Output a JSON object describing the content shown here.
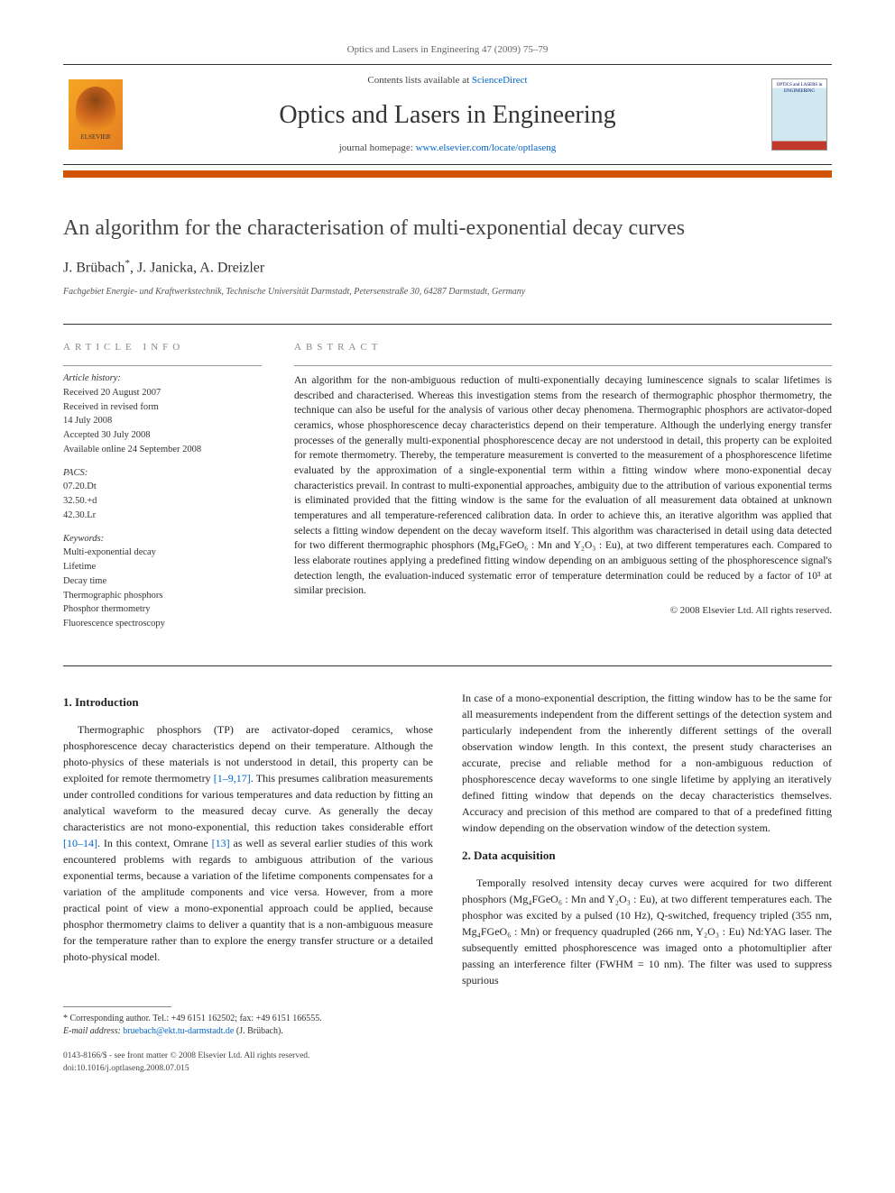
{
  "header": {
    "citation": "Optics and Lasers in Engineering 47 (2009) 75–79",
    "contents_prefix": "Contents lists available at ",
    "contents_link": "ScienceDirect",
    "journal_title": "Optics and Lasers in Engineering",
    "homepage_prefix": "journal homepage: ",
    "homepage_link": "www.elsevier.com/locate/optlaseng",
    "elsevier_label": "ELSEVIER",
    "cover_label": "OPTICS and LASERS in ENGINEERING"
  },
  "article": {
    "title": "An algorithm for the characterisation of multi-exponential decay curves",
    "authors_html": "J. Brübach *, J. Janicka, A. Dreizler",
    "author_1": "J. Brübach",
    "author_1_mark": "*",
    "author_2": "J. Janicka",
    "author_3": "A. Dreizler",
    "affiliation": "Fachgebiet Energie- und Kraftwerkstechnik, Technische Universität Darmstadt, Petersenstraße 30, 64287 Darmstadt, Germany"
  },
  "info": {
    "label": "ARTICLE INFO",
    "history_label": "Article history:",
    "received": "Received 20 August 2007",
    "revised1": "Received in revised form",
    "revised2": "14 July 2008",
    "accepted": "Accepted 30 July 2008",
    "online": "Available online 24 September 2008",
    "pacs_label": "PACS:",
    "pacs1": "07.20.Dt",
    "pacs2": "32.50.+d",
    "pacs3": "42.30.Lr",
    "keywords_label": "Keywords:",
    "kw1": "Multi-exponential decay",
    "kw2": "Lifetime",
    "kw3": "Decay time",
    "kw4": "Thermographic phosphors",
    "kw5": "Phosphor thermometry",
    "kw6": "Fluorescence spectroscopy"
  },
  "abstract": {
    "label": "ABSTRACT",
    "text": "An algorithm for the non-ambiguous reduction of multi-exponentially decaying luminescence signals to scalar lifetimes is described and characterised. Whereas this investigation stems from the research of thermographic phosphor thermometry, the technique can also be useful for the analysis of various other decay phenomena. Thermographic phosphors are activator-doped ceramics, whose phosphorescence decay characteristics depend on their temperature. Although the underlying energy transfer processes of the generally multi-exponential phosphorescence decay are not understood in detail, this property can be exploited for remote thermometry. Thereby, the temperature measurement is converted to the measurement of a phosphorescence lifetime evaluated by the approximation of a single-exponential term within a fitting window where mono-exponential decay characteristics prevail. In contrast to multi-exponential approaches, ambiguity due to the attribution of various exponential terms is eliminated provided that the fitting window is the same for the evaluation of all measurement data obtained at unknown temperatures and all temperature-referenced calibration data. In order to achieve this, an iterative algorithm was applied that selects a fitting window dependent on the decay waveform itself. This algorithm was characterised in detail using data detected for two different thermographic phosphors (Mg₄FGeO₆ : Mn and Y₂O₃ : Eu), at two different temperatures each. Compared to less elaborate routines applying a predefined fitting window depending on an ambiguous setting of the phosphorescence signal's detection length, the evaluation-induced systematic error of temperature determination could be reduced by a factor of 10³ at similar precision.",
    "copyright": "© 2008 Elsevier Ltd. All rights reserved."
  },
  "body": {
    "sec1_title": "1.  Introduction",
    "sec1_p1a": "Thermographic phosphors (TP) are activator-doped ceramics, whose phosphorescence decay characteristics depend on their temperature. Although the photo-physics of these materials is not understood in detail, this property can be exploited for remote thermometry ",
    "sec1_ref1": "[1–9,17]",
    "sec1_p1b": ". This presumes calibration measurements under controlled conditions for various temperatures and data reduction by fitting an analytical waveform to the measured decay curve. As generally the decay characteristics are not mono-exponential, this reduction takes considerable effort ",
    "sec1_ref2": "[10–14]",
    "sec1_p1c": ". In this context, Omrane ",
    "sec1_ref3": "[13]",
    "sec1_p1d": " as well as several earlier studies of this work encountered problems with regards to ambiguous attribution of the various exponential terms, because a variation of the lifetime components compensates for a variation of the amplitude components and vice versa. However, from a more practical point of view a mono-exponential approach could be applied, because phosphor thermometry claims to deliver a quantity that is a non-ambiguous measure for the temperature rather than to explore the energy transfer structure or a detailed photo-physical model.",
    "sec1_p2": "In case of a mono-exponential description, the fitting window has to be the same for all measurements independent from the different settings of the detection system and particularly independent from the inherently different settings of the overall observation window length. In this context, the present study characterises an accurate, precise and reliable method for a non-ambiguous reduction of phosphorescence decay waveforms to one single lifetime by applying an iteratively defined fitting window that depends on the decay characteristics themselves. Accuracy and precision of this method are compared to that of a predefined fitting window depending on the observation window of the detection system.",
    "sec2_title": "2.  Data acquisition",
    "sec2_p1": "Temporally resolved intensity decay curves were acquired for two different phosphors (Mg₄FGeO₆ : Mn and Y₂O₃ : Eu), at two different temperatures each. The phosphor was excited by a pulsed (10 Hz), Q-switched, frequency tripled (355 nm, Mg₄FGeO₆ : Mn) or frequency quadrupled (266 nm, Y₂O₃ : Eu) Nd:YAG laser. The subsequently emitted phosphorescence was imaged onto a photomultiplier after passing an interference filter (FWHM = 10 nm). The filter was used to suppress spurious"
  },
  "footnote": {
    "corr_label": "* Corresponding author. Tel.: +49 6151 162502; fax: +49 6151 166555.",
    "email_label": "E-mail address: ",
    "email": "bruebach@ekt.tu-darmstadt.de",
    "email_name": " (J. Brübach)."
  },
  "bottom": {
    "issn": "0143-8166/$ - see front matter © 2008 Elsevier Ltd. All rights reserved.",
    "doi": "doi:10.1016/j.optlaseng.2008.07.015"
  },
  "colors": {
    "orange_bar": "#d35400",
    "link": "#0066cc",
    "text": "#2a2a2a",
    "muted": "#888888"
  }
}
